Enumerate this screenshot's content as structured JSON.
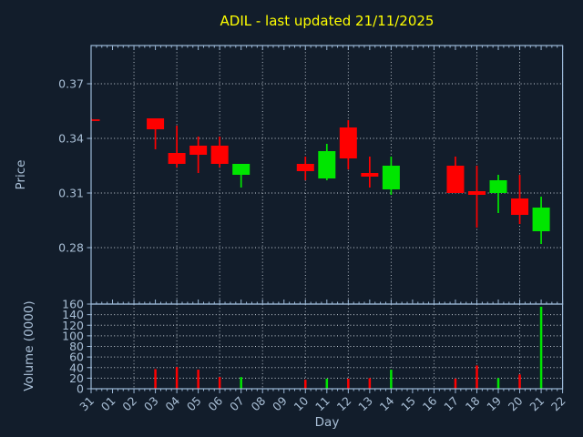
{
  "title": "ADIL - last updated 21/11/2025",
  "colors": {
    "background": "#121d2b",
    "frame": "#9cb9d8",
    "text": "#a9bfd6",
    "grid": "#c7cfd8",
    "title": "#ffff00",
    "up": "#00e600",
    "down": "#ff0000"
  },
  "chart_data": {
    "type": "candlestick",
    "title": "ADIL - last updated 21/11/2025",
    "xlabel": "Day",
    "price_ylabel": "Price",
    "volume_ylabel": "Volume (0000)",
    "x_categories": [
      "31",
      "01",
      "02",
      "03",
      "04",
      "05",
      "06",
      "07",
      "08",
      "09",
      "10",
      "11",
      "12",
      "13",
      "14",
      "15",
      "16",
      "17",
      "18",
      "19",
      "20",
      "21",
      "22"
    ],
    "price_ylim": [
      0.249,
      0.391
    ],
    "price_yticks": [
      0.28,
      0.31,
      0.34,
      0.37
    ],
    "volume_ylim": [
      0,
      160
    ],
    "volume_yticks": [
      0,
      20,
      40,
      60,
      80,
      100,
      120,
      140,
      160
    ],
    "grid": "dotted; vertical gridlines every 2 days; legend none",
    "candles": [
      {
        "day": "31",
        "open": 0.35,
        "high": 0.351,
        "low": 0.35,
        "close": 0.35,
        "volume": 0,
        "direction": "down"
      },
      {
        "day": "03",
        "open": 0.351,
        "high": 0.351,
        "low": 0.334,
        "close": 0.345,
        "volume": 37,
        "direction": "down"
      },
      {
        "day": "04",
        "open": 0.332,
        "high": 0.347,
        "low": 0.324,
        "close": 0.326,
        "volume": 41,
        "direction": "down"
      },
      {
        "day": "05",
        "open": 0.336,
        "high": 0.341,
        "low": 0.321,
        "close": 0.331,
        "volume": 36,
        "direction": "down"
      },
      {
        "day": "06",
        "open": 0.336,
        "high": 0.341,
        "low": 0.324,
        "close": 0.326,
        "volume": 22,
        "direction": "down"
      },
      {
        "day": "07",
        "open": 0.32,
        "high": 0.326,
        "low": 0.313,
        "close": 0.326,
        "volume": 22,
        "direction": "up"
      },
      {
        "day": "10",
        "open": 0.326,
        "high": 0.33,
        "low": 0.317,
        "close": 0.322,
        "volume": 17,
        "direction": "down"
      },
      {
        "day": "11",
        "open": 0.318,
        "high": 0.337,
        "low": 0.317,
        "close": 0.333,
        "volume": 19,
        "direction": "up"
      },
      {
        "day": "12",
        "open": 0.346,
        "high": 0.35,
        "low": 0.323,
        "close": 0.329,
        "volume": 19,
        "direction": "down"
      },
      {
        "day": "13",
        "open": 0.321,
        "high": 0.33,
        "low": 0.313,
        "close": 0.319,
        "volume": 20,
        "direction": "down"
      },
      {
        "day": "14",
        "open": 0.312,
        "high": 0.33,
        "low": 0.309,
        "close": 0.325,
        "volume": 36,
        "direction": "up"
      },
      {
        "day": "17",
        "open": 0.325,
        "high": 0.33,
        "low": 0.31,
        "close": 0.31,
        "volume": 19,
        "direction": "down"
      },
      {
        "day": "18",
        "open": 0.311,
        "high": 0.325,
        "low": 0.291,
        "close": 0.309,
        "volume": 44,
        "direction": "down"
      },
      {
        "day": "19",
        "open": 0.31,
        "high": 0.32,
        "low": 0.299,
        "close": 0.317,
        "volume": 20,
        "direction": "up"
      },
      {
        "day": "20",
        "open": 0.307,
        "high": 0.32,
        "low": 0.293,
        "close": 0.298,
        "volume": 27,
        "direction": "down"
      },
      {
        "day": "21",
        "open": 0.289,
        "high": 0.308,
        "low": 0.282,
        "close": 0.302,
        "volume": 155,
        "direction": "up"
      }
    ]
  }
}
